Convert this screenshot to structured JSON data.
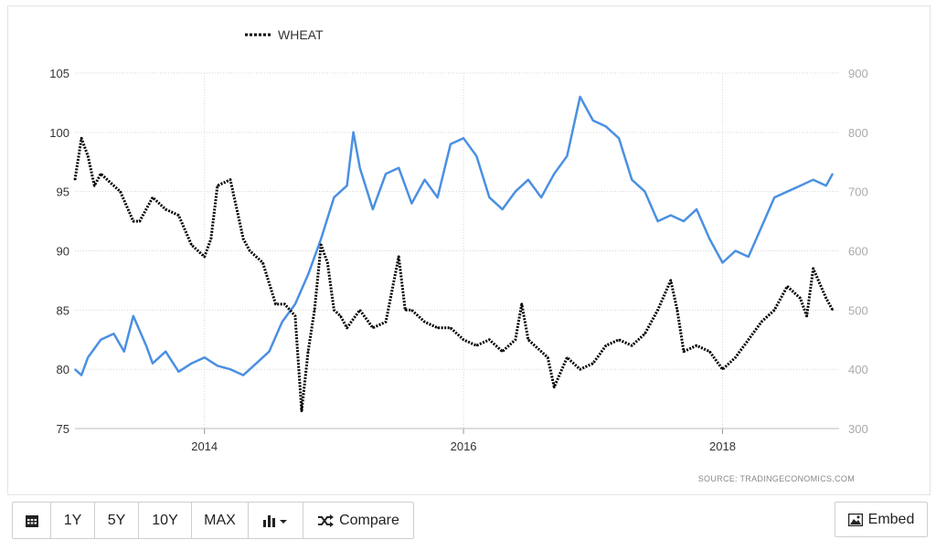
{
  "chart_data": {
    "type": "line",
    "legend": {
      "label": "WHEAT",
      "placement": "top-left"
    },
    "source": "SOURCE: TRADINGECONOMICS.COM",
    "x_ticks": [
      "2014",
      "2016",
      "2018"
    ],
    "x_range": [
      2013.0,
      2018.9
    ],
    "left_axis": {
      "ticks": [
        "105",
        "100",
        "95",
        "90",
        "85",
        "80",
        "75"
      ],
      "ylim": [
        75,
        105
      ]
    },
    "right_axis": {
      "ticks": [
        "900",
        "800",
        "700",
        "600",
        "500",
        "400",
        "300"
      ],
      "ylim": [
        300,
        900
      ]
    },
    "grid": true,
    "series": [
      {
        "name": "",
        "axis": "left",
        "color": "#4a90e2",
        "style": "solid",
        "x": [
          2013.0,
          2013.05,
          2013.1,
          2013.2,
          2013.3,
          2013.38,
          2013.45,
          2013.55,
          2013.6,
          2013.7,
          2013.8,
          2013.9,
          2014.0,
          2014.1,
          2014.2,
          2014.3,
          2014.4,
          2014.5,
          2014.6,
          2014.7,
          2014.8,
          2014.9,
          2015.0,
          2015.1,
          2015.15,
          2015.2,
          2015.3,
          2015.4,
          2015.5,
          2015.6,
          2015.7,
          2015.8,
          2015.9,
          2016.0,
          2016.1,
          2016.2,
          2016.3,
          2016.4,
          2016.5,
          2016.6,
          2016.7,
          2016.8,
          2016.9,
          2017.0,
          2017.1,
          2017.2,
          2017.3,
          2017.4,
          2017.5,
          2017.6,
          2017.7,
          2017.8,
          2017.9,
          2018.0,
          2018.1,
          2018.2,
          2018.3,
          2018.4,
          2018.5,
          2018.6,
          2018.7,
          2018.8,
          2018.85
        ],
        "values": [
          80.0,
          79.5,
          81.0,
          82.5,
          83.0,
          81.5,
          84.5,
          82.0,
          80.5,
          81.5,
          79.8,
          80.5,
          81.0,
          80.3,
          80.0,
          79.5,
          80.5,
          81.5,
          84.0,
          85.5,
          88.0,
          91.0,
          94.5,
          95.5,
          100.0,
          97.0,
          93.5,
          96.5,
          97.0,
          94.0,
          96.0,
          94.5,
          99.0,
          99.5,
          98.0,
          94.5,
          93.5,
          95.0,
          96.0,
          94.5,
          96.5,
          98.0,
          103.0,
          101.0,
          100.5,
          99.5,
          96.0,
          95.0,
          92.5,
          93.0,
          92.5,
          93.5,
          91.0,
          89.0,
          90.0,
          89.5,
          92.0,
          94.5,
          95.0,
          95.5,
          96.0,
          95.5,
          96.5
        ]
      },
      {
        "name": "WHEAT",
        "axis": "right",
        "color": "#000000",
        "style": "dotted",
        "x": [
          2013.0,
          2013.05,
          2013.1,
          2013.15,
          2013.2,
          2013.3,
          2013.35,
          2013.45,
          2013.5,
          2013.6,
          2013.7,
          2013.8,
          2013.9,
          2014.0,
          2014.05,
          2014.1,
          2014.2,
          2014.3,
          2014.35,
          2014.45,
          2014.55,
          2014.62,
          2014.7,
          2014.75,
          2014.8,
          2014.85,
          2014.9,
          2014.95,
          2015.0,
          2015.05,
          2015.1,
          2015.2,
          2015.3,
          2015.4,
          2015.5,
          2015.55,
          2015.6,
          2015.7,
          2015.8,
          2015.9,
          2016.0,
          2016.1,
          2016.2,
          2016.3,
          2016.4,
          2016.45,
          2016.5,
          2016.6,
          2016.65,
          2016.7,
          2016.8,
          2016.9,
          2017.0,
          2017.1,
          2017.2,
          2017.3,
          2017.4,
          2017.5,
          2017.6,
          2017.65,
          2017.7,
          2017.8,
          2017.9,
          2018.0,
          2018.1,
          2018.2,
          2018.3,
          2018.4,
          2018.5,
          2018.6,
          2018.65,
          2018.7,
          2018.8,
          2018.85
        ],
        "values": [
          720,
          790,
          760,
          710,
          730,
          710,
          700,
          650,
          650,
          690,
          670,
          660,
          610,
          590,
          620,
          710,
          720,
          620,
          600,
          580,
          510,
          510,
          490,
          330,
          430,
          500,
          610,
          580,
          500,
          490,
          470,
          500,
          470,
          480,
          590,
          500,
          500,
          480,
          470,
          470,
          450,
          440,
          450,
          430,
          450,
          510,
          450,
          430,
          420,
          370,
          420,
          400,
          410,
          440,
          450,
          440,
          460,
          500,
          550,
          500,
          430,
          440,
          430,
          400,
          420,
          450,
          480,
          500,
          540,
          520,
          490,
          570,
          520,
          500
        ]
      }
    ]
  },
  "toolbar": {
    "calendar_icon": "calendar-icon",
    "buttons": [
      "1Y",
      "5Y",
      "10Y",
      "MAX"
    ],
    "chart_type_icon": "bar-chart-icon",
    "compare_label": "Compare",
    "compare_icon": "shuffle-icon"
  },
  "embed": {
    "label": "Embed",
    "icon": "image-icon"
  }
}
